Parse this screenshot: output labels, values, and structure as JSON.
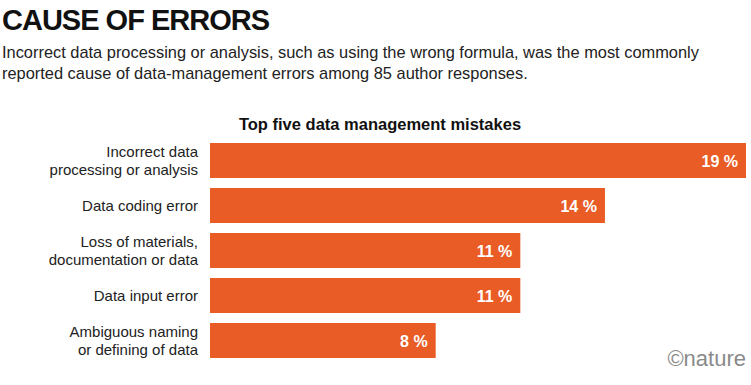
{
  "chart_data": {
    "type": "bar",
    "orientation": "horizontal",
    "title": "CAUSE OF ERRORS",
    "subtitle": "Incorrect data processing or analysis, such as using the wrong formula, was the most commonly reported cause of data-management errors among 85 author responses.",
    "plot_title": "Top five data management mistakes",
    "categories": [
      "Incorrect data\nprocessing or analysis",
      "Data coding error",
      "Loss of materials,\ndocumentation or data",
      "Data input error",
      "Ambiguous naming\nor defining of data"
    ],
    "values": [
      19,
      14,
      11,
      11,
      8
    ],
    "value_labels": [
      "19 %",
      "14 %",
      "11 %",
      "11 %",
      "8 %"
    ],
    "color": "#e95c26",
    "xlim": [
      0,
      19
    ],
    "data_labels": true,
    "tick_labels": "y",
    "grid": false,
    "source": "©nature"
  }
}
